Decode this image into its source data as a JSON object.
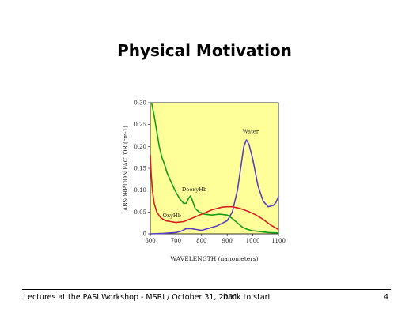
{
  "slide": {
    "title": "Physical Motivation",
    "footer_left": "Lectures at the PASI Workshop - MSRI / October 31, 2001",
    "footer_link": "back to start",
    "page_number": "4"
  },
  "chart_data": {
    "type": "line",
    "xlabel": "WAVELENGTH (nanometers)",
    "ylabel": "ABSORPTION FACTOR (cm-1)",
    "xlim": [
      600,
      1100
    ],
    "ylim": [
      0,
      0.3
    ],
    "x_ticks": [
      "600",
      "700",
      "800",
      "900",
      "1000",
      "1100"
    ],
    "y_ticks": [
      "0",
      "0.05",
      "0.10",
      "0.15",
      "0.20",
      "0.25",
      "0.30"
    ],
    "background": "#ffff99",
    "grid": false,
    "series": [
      {
        "name": "Water",
        "color": "#5a3fc0",
        "x": [
          600,
          650,
          700,
          720,
          740,
          760,
          780,
          800,
          830,
          860,
          880,
          900,
          920,
          940,
          955,
          965,
          975,
          985,
          1000,
          1020,
          1040,
          1060,
          1080,
          1090,
          1100
        ],
        "y": [
          0.0,
          0.001,
          0.003,
          0.006,
          0.012,
          0.012,
          0.01,
          0.008,
          0.013,
          0.018,
          0.024,
          0.03,
          0.05,
          0.1,
          0.16,
          0.2,
          0.215,
          0.205,
          0.17,
          0.11,
          0.075,
          0.062,
          0.065,
          0.072,
          0.085
        ]
      },
      {
        "name": "DeoxyHb",
        "color": "#1a9a1a",
        "x": [
          605,
          615,
          625,
          635,
          645,
          655,
          665,
          680,
          700,
          715,
          730,
          740,
          750,
          757,
          765,
          775,
          790,
          810,
          840,
          870,
          900,
          920,
          940,
          960,
          980,
          1000,
          1030,
          1060,
          1100
        ],
        "y": [
          0.3,
          0.27,
          0.235,
          0.2,
          0.175,
          0.16,
          0.14,
          0.12,
          0.095,
          0.08,
          0.07,
          0.07,
          0.082,
          0.087,
          0.075,
          0.058,
          0.05,
          0.045,
          0.043,
          0.045,
          0.043,
          0.035,
          0.025,
          0.015,
          0.01,
          0.007,
          0.005,
          0.003,
          0.002
        ]
      },
      {
        "name": "OxyHb",
        "color": "#d42020",
        "x": [
          600,
          603,
          608,
          615,
          625,
          640,
          660,
          680,
          700,
          730,
          760,
          800,
          840,
          880,
          900,
          920,
          950,
          980,
          1010,
          1040,
          1070,
          1100
        ],
        "y": [
          0.18,
          0.14,
          0.1,
          0.07,
          0.05,
          0.037,
          0.03,
          0.028,
          0.026,
          0.028,
          0.035,
          0.045,
          0.055,
          0.061,
          0.062,
          0.062,
          0.058,
          0.052,
          0.044,
          0.033,
          0.02,
          0.01
        ]
      }
    ],
    "annotations": [
      {
        "text": "Water",
        "x": 960,
        "y": 0.23
      },
      {
        "text": "DeoxyHb",
        "x": 723,
        "y": 0.098
      },
      {
        "text": "OxyHb",
        "x": 648,
        "y": 0.038
      }
    ]
  }
}
